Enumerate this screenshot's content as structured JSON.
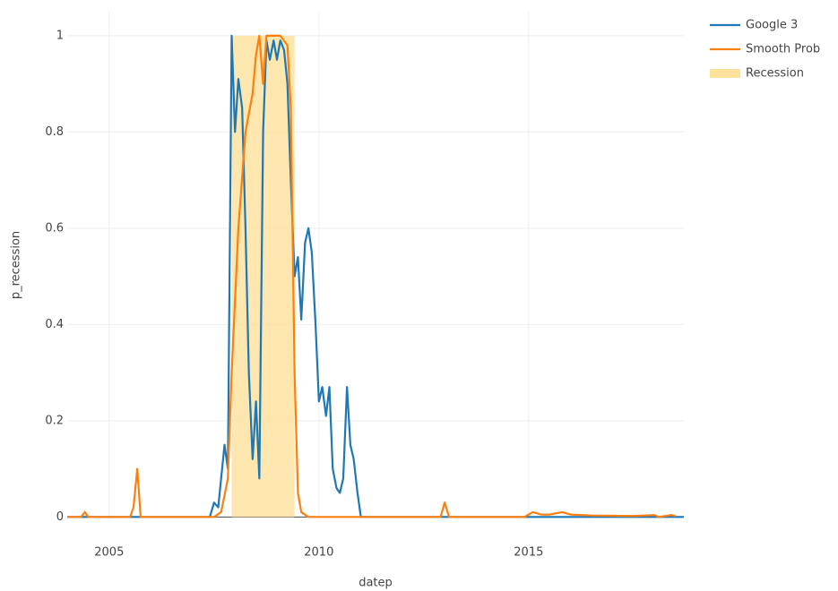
{
  "chart_data": {
    "type": "line",
    "x_label": "datep",
    "y_label": "p_recession",
    "xlim": [
      2004.0,
      2018.7
    ],
    "xticks": [
      2005,
      2010,
      2015
    ],
    "ylim": [
      -0.005,
      1.05
    ],
    "yticks": [
      0,
      0.2,
      0.4,
      0.6,
      0.8,
      1
    ],
    "grid": true,
    "legend": "top-right",
    "series": [
      {
        "name": "Google 3",
        "color": "#1f77b4",
        "mode": "line",
        "x": [
          2004.0,
          2007.4,
          2007.5,
          2007.6,
          2007.75,
          2007.83,
          2007.92,
          2008.0,
          2008.08,
          2008.17,
          2008.25,
          2008.33,
          2008.42,
          2008.5,
          2008.58,
          2008.67,
          2008.75,
          2008.83,
          2008.92,
          2009.0,
          2009.08,
          2009.17,
          2009.25,
          2009.33,
          2009.42,
          2009.5,
          2009.58,
          2009.67,
          2009.75,
          2009.83,
          2009.92,
          2010.0,
          2010.08,
          2010.17,
          2010.25,
          2010.33,
          2010.42,
          2010.5,
          2010.58,
          2010.67,
          2010.75,
          2010.83,
          2010.92,
          2011.0,
          2018.7
        ],
        "values": [
          0,
          0,
          0.03,
          0.02,
          0.15,
          0.1,
          1.0,
          0.8,
          0.91,
          0.85,
          0.6,
          0.3,
          0.12,
          0.24,
          0.08,
          0.8,
          0.99,
          0.95,
          0.99,
          0.95,
          0.99,
          0.97,
          0.9,
          0.7,
          0.5,
          0.54,
          0.41,
          0.57,
          0.6,
          0.55,
          0.4,
          0.24,
          0.27,
          0.21,
          0.27,
          0.1,
          0.06,
          0.05,
          0.08,
          0.27,
          0.15,
          0.12,
          0.05,
          0,
          0
        ]
      },
      {
        "name": "Smooth Prob",
        "color": "#ff7f0e",
        "mode": "line",
        "x": [
          2004.0,
          2004.33,
          2004.42,
          2004.5,
          2005.5,
          2005.58,
          2005.67,
          2005.75,
          2007.5,
          2007.67,
          2007.83,
          2007.92,
          2008.08,
          2008.25,
          2008.42,
          2008.5,
          2008.58,
          2008.67,
          2008.75,
          2008.92,
          2009.08,
          2009.25,
          2009.33,
          2009.42,
          2009.5,
          2009.58,
          2009.75,
          2012.9,
          2013.0,
          2013.1,
          2014.9,
          2015.1,
          2015.3,
          2015.5,
          2015.8,
          2016.0,
          2016.5,
          2017.5,
          2018.0,
          2018.1,
          2018.4,
          2018.5
        ],
        "values": [
          0,
          0,
          0.01,
          0,
          0,
          0.02,
          0.1,
          0,
          0,
          0.01,
          0.08,
          0.3,
          0.6,
          0.8,
          0.88,
          0.96,
          1.0,
          0.9,
          1.0,
          1.0,
          1.0,
          0.98,
          0.85,
          0.3,
          0.05,
          0.01,
          0,
          0,
          0.03,
          0,
          0,
          0.01,
          0.005,
          0.005,
          0.01,
          0.005,
          0.003,
          0.002,
          0.004,
          0,
          0.004,
          0.002
        ]
      },
      {
        "name": "Recession",
        "color": "#fde19a",
        "mode": "area",
        "x": [
          2007.92,
          2009.42
        ],
        "values": [
          1,
          1
        ]
      }
    ]
  }
}
